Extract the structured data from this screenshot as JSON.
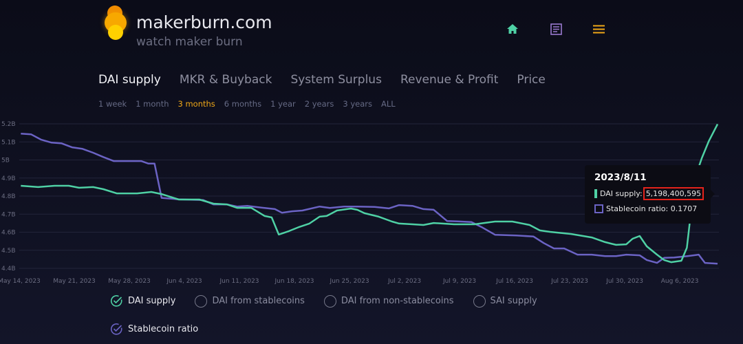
{
  "header": {
    "brand": "makerburn.com",
    "tagline": "watch maker burn"
  },
  "nav": [
    {
      "icon": "home-icon",
      "color": "#4fd1a5"
    },
    {
      "icon": "document-icon",
      "color": "#9b7ad0"
    },
    {
      "icon": "menu-icon",
      "color": "#f0a818"
    }
  ],
  "tabs": [
    {
      "label": "DAI supply",
      "active": true
    },
    {
      "label": "MKR & Buyback"
    },
    {
      "label": "System Surplus"
    },
    {
      "label": "Revenue & Profit"
    },
    {
      "label": "Price"
    }
  ],
  "ranges": [
    {
      "label": "1 week"
    },
    {
      "label": "1 month"
    },
    {
      "label": "3 months",
      "active": true
    },
    {
      "label": "6 months"
    },
    {
      "label": "1 year"
    },
    {
      "label": "2 years"
    },
    {
      "label": "3 years"
    },
    {
      "label": "ALL"
    }
  ],
  "tooltip": {
    "date": "2023/8/11",
    "dai_label": "DAI supply:",
    "dai_value": "5,198,400,595",
    "ratio_label": "Stablecoin ratio: 0.1707"
  },
  "legend": [
    {
      "label": "DAI supply",
      "checked": true,
      "color": "#4fd1a5"
    },
    {
      "label": "DAI from stablecoins",
      "checked": false
    },
    {
      "label": "DAI from non-stablecoins",
      "checked": false
    },
    {
      "label": "SAI supply",
      "checked": false
    },
    {
      "label": "Stablecoin ratio",
      "checked": true,
      "color": "#6b63c4"
    }
  ],
  "chart_data": {
    "type": "line",
    "x_unit": "days since May 14, 2023",
    "xlim": [
      0,
      89
    ],
    "ylim": [
      4.4,
      5.2
    ],
    "y_ticks": [
      "4.4B",
      "4.5B",
      "4.6B",
      "4.7B",
      "4.8B",
      "4.9B",
      "5B",
      "5.1B",
      "5.2B"
    ],
    "x_ticks": [
      {
        "day": 0,
        "label": "May 14, 2023"
      },
      {
        "day": 7,
        "label": "May 21, 2023"
      },
      {
        "day": 14,
        "label": "May 28, 2023"
      },
      {
        "day": 21,
        "label": "Jun 4, 2023"
      },
      {
        "day": 28,
        "label": "Jun 11, 2023"
      },
      {
        "day": 35,
        "label": "Jun 18, 2023"
      },
      {
        "day": 42,
        "label": "Jun 25, 2023"
      },
      {
        "day": 49,
        "label": "Jul 2, 2023"
      },
      {
        "day": 56,
        "label": "Jul 9, 2023"
      },
      {
        "day": 63,
        "label": "Jul 16, 2023"
      },
      {
        "day": 70,
        "label": "Jul 23, 2023"
      },
      {
        "day": 77,
        "label": "Jul 30, 2023"
      },
      {
        "day": 84,
        "label": "Aug 6, 2023"
      }
    ],
    "grid": true,
    "series": [
      {
        "name": "DAI supply",
        "unit": "billions",
        "color": "#4fd1a5",
        "points": [
          [
            0.2,
            4.857
          ],
          [
            2.4,
            4.85
          ],
          [
            4.5,
            4.857
          ],
          [
            6.3,
            4.857
          ],
          [
            7.6,
            4.846
          ],
          [
            9.4,
            4.85
          ],
          [
            10.7,
            4.838
          ],
          [
            12.4,
            4.815
          ],
          [
            15,
            4.815
          ],
          [
            16.8,
            4.823
          ],
          [
            18.1,
            4.811
          ],
          [
            20.3,
            4.781
          ],
          [
            22.9,
            4.781
          ],
          [
            24.7,
            4.758
          ],
          [
            26.4,
            4.754
          ],
          [
            27.7,
            4.735
          ],
          [
            29.5,
            4.735
          ],
          [
            31.2,
            4.69
          ],
          [
            32.1,
            4.682
          ],
          [
            33,
            4.587
          ],
          [
            34.3,
            4.606
          ],
          [
            35.6,
            4.629
          ],
          [
            36.9,
            4.648
          ],
          [
            38.2,
            4.686
          ],
          [
            39.1,
            4.69
          ],
          [
            40.4,
            4.72
          ],
          [
            42.2,
            4.731
          ],
          [
            43,
            4.724
          ],
          [
            43.9,
            4.705
          ],
          [
            45.7,
            4.686
          ],
          [
            47.4,
            4.659
          ],
          [
            48.3,
            4.648
          ],
          [
            50,
            4.644
          ],
          [
            51.4,
            4.64
          ],
          [
            52.7,
            4.651
          ],
          [
            55.3,
            4.644
          ],
          [
            57.9,
            4.644
          ],
          [
            60.5,
            4.659
          ],
          [
            62.7,
            4.659
          ],
          [
            64.9,
            4.64
          ],
          [
            66.2,
            4.61
          ],
          [
            67.5,
            4.602
          ],
          [
            70.2,
            4.59
          ],
          [
            72.8,
            4.571
          ],
          [
            74.5,
            4.545
          ],
          [
            75.9,
            4.53
          ],
          [
            77.2,
            4.533
          ],
          [
            78,
            4.564
          ],
          [
            78.9,
            4.579
          ],
          [
            79.8,
            4.522
          ],
          [
            81.1,
            4.476
          ],
          [
            82,
            4.446
          ],
          [
            82.9,
            4.434
          ],
          [
            84.2,
            4.442
          ],
          [
            84.9,
            4.514
          ],
          [
            85.5,
            4.743
          ],
          [
            85.9,
            4.895
          ],
          [
            86.8,
            5.01
          ],
          [
            87.7,
            5.105
          ],
          [
            88.8,
            5.198
          ]
        ]
      },
      {
        "name": "Stablecoin ratio",
        "color": "#6b63c4",
        "hidden_axis_range": [
          0.158,
          0.558
        ],
        "points": [
          [
            0.2,
            0.531
          ],
          [
            1.5,
            0.529
          ],
          [
            2.8,
            0.514
          ],
          [
            4.1,
            0.506
          ],
          [
            5.4,
            0.504
          ],
          [
            6.7,
            0.493
          ],
          [
            8,
            0.489
          ],
          [
            9.4,
            0.478
          ],
          [
            10.7,
            0.466
          ],
          [
            12,
            0.455
          ],
          [
            13.3,
            0.455
          ],
          [
            14.6,
            0.455
          ],
          [
            15.5,
            0.455
          ],
          [
            16.4,
            0.448
          ],
          [
            17.2,
            0.448
          ],
          [
            18.1,
            0.353
          ],
          [
            20.3,
            0.349
          ],
          [
            23.4,
            0.347
          ],
          [
            24.7,
            0.335
          ],
          [
            26.4,
            0.335
          ],
          [
            27.7,
            0.329
          ],
          [
            29,
            0.331
          ],
          [
            31.2,
            0.325
          ],
          [
            32.5,
            0.322
          ],
          [
            33.4,
            0.312
          ],
          [
            34.7,
            0.316
          ],
          [
            36,
            0.318
          ],
          [
            38.2,
            0.329
          ],
          [
            39.5,
            0.325
          ],
          [
            41.3,
            0.329
          ],
          [
            43,
            0.329
          ],
          [
            45.2,
            0.328
          ],
          [
            47,
            0.324
          ],
          [
            48.3,
            0.333
          ],
          [
            50,
            0.331
          ],
          [
            51.4,
            0.322
          ],
          [
            52.7,
            0.32
          ],
          [
            54.4,
            0.289
          ],
          [
            55.7,
            0.288
          ],
          [
            57.5,
            0.286
          ],
          [
            58.8,
            0.272
          ],
          [
            60.5,
            0.251
          ],
          [
            63.2,
            0.249
          ],
          [
            65.4,
            0.246
          ],
          [
            66.7,
            0.228
          ],
          [
            68,
            0.213
          ],
          [
            69.3,
            0.213
          ],
          [
            71,
            0.196
          ],
          [
            72.8,
            0.196
          ],
          [
            74.5,
            0.192
          ],
          [
            75.9,
            0.192
          ],
          [
            77.2,
            0.196
          ],
          [
            78.9,
            0.194
          ],
          [
            79.8,
            0.181
          ],
          [
            81.1,
            0.173
          ],
          [
            82,
            0.187
          ],
          [
            83.3,
            0.188
          ],
          [
            85,
            0.192
          ],
          [
            86.4,
            0.196
          ],
          [
            87.2,
            0.173
          ],
          [
            88.8,
            0.1707
          ]
        ]
      }
    ]
  }
}
